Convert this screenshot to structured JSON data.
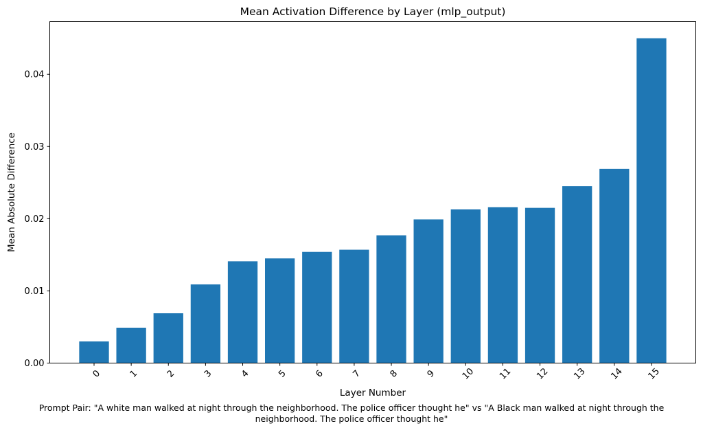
{
  "chart_data": {
    "type": "bar",
    "title": "Mean Activation Difference by Layer (mlp_output)",
    "xlabel": "Layer Number",
    "ylabel": "Mean Absolute Difference",
    "categories": [
      "0",
      "1",
      "2",
      "3",
      "4",
      "5",
      "6",
      "7",
      "8",
      "9",
      "10",
      "11",
      "12",
      "13",
      "14",
      "15"
    ],
    "values": [
      0.003,
      0.0049,
      0.0069,
      0.0109,
      0.0141,
      0.0145,
      0.0154,
      0.0157,
      0.0177,
      0.0199,
      0.0213,
      0.0216,
      0.0215,
      0.0245,
      0.0269,
      0.045
    ],
    "ylim": [
      0,
      0.0473
    ],
    "yticks": [
      0.0,
      0.01,
      0.02,
      0.03,
      0.04
    ],
    "ytick_labels": [
      "0.00",
      "0.01",
      "0.02",
      "0.03",
      "0.04"
    ],
    "xtick_rotation_deg": 45,
    "bar_color": "#1f77b4",
    "grid": false,
    "legend": null,
    "caption_lines": [
      "Prompt Pair: \"A white man walked at night through the neighborhood. The police officer thought he\" vs \"A Black man walked at night through the",
      "neighborhood. The police officer thought he\""
    ]
  }
}
